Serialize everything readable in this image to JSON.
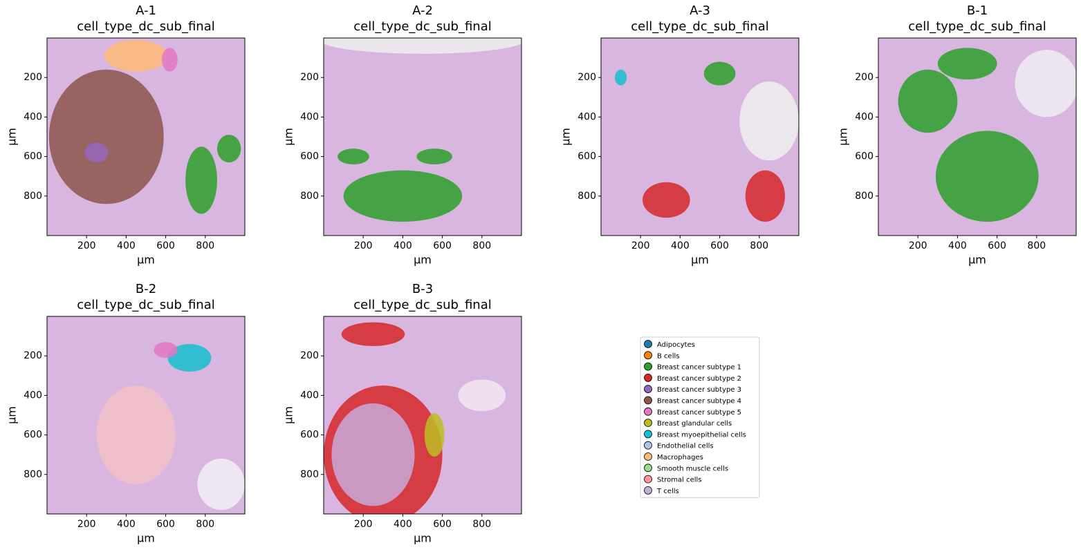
{
  "chart_data": [
    {
      "type": "scatter",
      "title": "A-1",
      "subtitle": "cell_type_dc_sub_final",
      "xlabel": "µm",
      "ylabel": "µm",
      "xlim": [
        0,
        1000
      ],
      "ylim": [
        1000,
        0
      ],
      "xticks": [
        200,
        400,
        600,
        800
      ],
      "yticks": [
        200,
        400,
        600,
        800
      ]
    },
    {
      "type": "scatter",
      "title": "A-2",
      "subtitle": "cell_type_dc_sub_final",
      "xlabel": "µm",
      "ylabel": "µm",
      "xlim": [
        0,
        1000
      ],
      "ylim": [
        1000,
        0
      ],
      "xticks": [
        200,
        400,
        600,
        800
      ],
      "yticks": [
        200,
        400,
        600,
        800
      ]
    },
    {
      "type": "scatter",
      "title": "A-3",
      "subtitle": "cell_type_dc_sub_final",
      "xlabel": "µm",
      "ylabel": "µm",
      "xlim": [
        0,
        1000
      ],
      "ylim": [
        1000,
        0
      ],
      "xticks": [
        200,
        400,
        600,
        800
      ],
      "yticks": [
        200,
        400,
        600,
        800
      ]
    },
    {
      "type": "scatter",
      "title": "B-1",
      "subtitle": "cell_type_dc_sub_final",
      "xlabel": "µm",
      "ylabel": "µm",
      "xlim": [
        0,
        1000
      ],
      "ylim": [
        1000,
        0
      ],
      "xticks": [
        200,
        400,
        600,
        800
      ],
      "yticks": [
        200,
        400,
        600,
        800
      ]
    },
    {
      "type": "scatter",
      "title": "B-2",
      "subtitle": "cell_type_dc_sub_final",
      "xlabel": "µm",
      "ylabel": "µm",
      "xlim": [
        0,
        1000
      ],
      "ylim": [
        1000,
        0
      ],
      "xticks": [
        200,
        400,
        600,
        800
      ],
      "yticks": [
        200,
        400,
        600,
        800
      ]
    },
    {
      "type": "scatter",
      "title": "B-3",
      "subtitle": "cell_type_dc_sub_final",
      "xlabel": "µm",
      "ylabel": "µm",
      "xlim": [
        0,
        1000
      ],
      "ylim": [
        1000,
        0
      ],
      "xticks": [
        200,
        400,
        600,
        800
      ],
      "yticks": [
        200,
        400,
        600,
        800
      ]
    }
  ],
  "legend": {
    "items": [
      {
        "name": "Adipocytes",
        "color": "#1f77b4"
      },
      {
        "name": "B cells",
        "color": "#ff7f0e"
      },
      {
        "name": "Breast cancer subtype 1",
        "color": "#2ca02c"
      },
      {
        "name": "Breast cancer subtype 2",
        "color": "#d62728"
      },
      {
        "name": "Breast cancer subtype 3",
        "color": "#9467bd"
      },
      {
        "name": "Breast cancer subtype 4",
        "color": "#8c564b"
      },
      {
        "name": "Breast cancer subtype 5",
        "color": "#e377c2"
      },
      {
        "name": "Breast glandular cells",
        "color": "#bcbd22"
      },
      {
        "name": "Breast myoepithelial cells",
        "color": "#17becf"
      },
      {
        "name": "Endothelial cells",
        "color": "#aec7e8"
      },
      {
        "name": "Macrophages",
        "color": "#ffbb78"
      },
      {
        "name": "Smooth muscle cells",
        "color": "#98df8a"
      },
      {
        "name": "Stromal cells",
        "color": "#ff9896"
      },
      {
        "name": "T cells",
        "color": "#c5b0d5"
      }
    ]
  }
}
